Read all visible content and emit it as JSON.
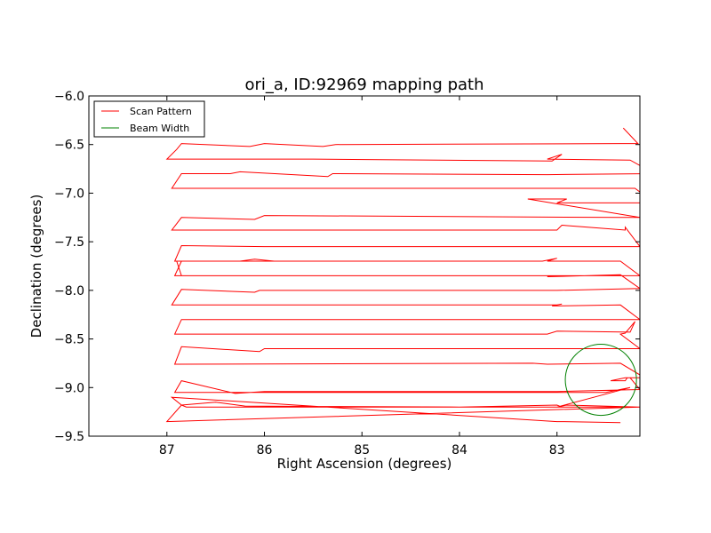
{
  "chart_data": {
    "type": "line",
    "title": "ori_a, ID:92969 mapping path",
    "xlabel": "Right Ascension (degrees)",
    "ylabel": "Declination (degrees)",
    "xlim": [
      87.8,
      82.15
    ],
    "ylim": [
      -9.5,
      -6.0
    ],
    "x_ticks": [
      {
        "value": 87,
        "label": "87"
      },
      {
        "value": 86,
        "label": "86"
      },
      {
        "value": 85,
        "label": "85"
      },
      {
        "value": 84,
        "label": "84"
      },
      {
        "value": 83,
        "label": "83"
      }
    ],
    "y_ticks": [
      {
        "value": -6.0,
        "label": "−6.0"
      },
      {
        "value": -6.5,
        "label": "−6.5"
      },
      {
        "value": -7.0,
        "label": "−7.0"
      },
      {
        "value": -7.5,
        "label": "−7.5"
      },
      {
        "value": -8.0,
        "label": "−8.0"
      },
      {
        "value": -8.5,
        "label": "−8.5"
      },
      {
        "value": -9.0,
        "label": "−9.0"
      },
      {
        "value": -9.5,
        "label": "−9.5"
      }
    ],
    "grid": false,
    "legend": {
      "position": "top-left",
      "entries": [
        {
          "label": "Scan Pattern",
          "color": "#ff0000"
        },
        {
          "label": "Beam Width",
          "color": "#008000"
        }
      ]
    },
    "series": [
      {
        "name": "Scan Pattern",
        "color": "#ff0000",
        "x": [
          82.32,
          82.17,
          82.35,
          85.27,
          85.4,
          86.0,
          86.15,
          86.85,
          86.9,
          87.0,
          85.5,
          83.05,
          82.95,
          83.1,
          82.25,
          82.0,
          83.1,
          85.3,
          85.35,
          86.25,
          86.35,
          86.85,
          86.95,
          82.2,
          82.0,
          83.0,
          82.9,
          83.3,
          82.15,
          82.35,
          86.0,
          86.1,
          86.85,
          86.95,
          83.0,
          82.95,
          82.3,
          82.3,
          82.15,
          85.4,
          86.0,
          86.85,
          86.92,
          83.15,
          83.0,
          83.1,
          82.35,
          82.15,
          86.85,
          86.9,
          86.25,
          86.1,
          85.9,
          85.3,
          86.2,
          86.85,
          86.92,
          83.0,
          83.1,
          82.35,
          82.15,
          83.0,
          86.05,
          86.1,
          86.85,
          86.95,
          83.0,
          82.95,
          83.05,
          82.35,
          82.15,
          86.85,
          86.92,
          83.1,
          83.0,
          82.25,
          82.2,
          82.3,
          82.35,
          82.15,
          85.35,
          86.0,
          86.05,
          86.85,
          86.92,
          83.25,
          83.1,
          82.35,
          82.1,
          82.28,
          82.3,
          82.45,
          82.3,
          82.25,
          82.15,
          83.0,
          86.0,
          86.3,
          86.85,
          86.92,
          82.5,
          82.25,
          83.0,
          82.9,
          82.15,
          86.8,
          86.85,
          87.0,
          82.15,
          82.95,
          83.0,
          84.0,
          86.2,
          86.5,
          86.85,
          86.95,
          83.0,
          82.95,
          82.35
        ],
        "y": [
          -6.33,
          -6.49,
          -6.49,
          -6.5,
          -6.52,
          -6.49,
          -6.52,
          -6.49,
          -6.55,
          -6.65,
          -6.65,
          -6.67,
          -6.6,
          -6.65,
          -6.66,
          -6.8,
          -6.81,
          -6.8,
          -6.83,
          -6.78,
          -6.8,
          -6.8,
          -6.95,
          -6.95,
          -7.1,
          -7.1,
          -7.06,
          -7.06,
          -7.25,
          -7.25,
          -7.23,
          -7.27,
          -7.25,
          -7.38,
          -7.38,
          -7.33,
          -7.38,
          -7.35,
          -7.55,
          -7.55,
          -7.55,
          -7.54,
          -7.7,
          -7.7,
          -7.67,
          -7.7,
          -7.7,
          -7.85,
          -7.85,
          -7.7,
          -7.7,
          -7.68,
          -7.7,
          -7.7,
          -7.7,
          -7.7,
          -7.85,
          -7.85,
          -7.86,
          -7.84,
          -7.98,
          -8.0,
          -8.0,
          -8.02,
          -7.99,
          -8.15,
          -8.15,
          -8.14,
          -8.16,
          -8.15,
          -8.3,
          -8.3,
          -8.45,
          -8.45,
          -8.42,
          -8.43,
          -8.32,
          -8.44,
          -8.45,
          -8.6,
          -8.6,
          -8.6,
          -8.63,
          -8.58,
          -8.76,
          -8.75,
          -8.76,
          -8.75,
          -8.9,
          -8.9,
          -8.93,
          -8.93,
          -8.9,
          -8.9,
          -9.02,
          -9.04,
          -9.04,
          -9.06,
          -8.93,
          -9.05,
          -9.05,
          -9.0,
          -9.2,
          -9.18,
          -9.2,
          -9.2,
          -9.18,
          -9.35,
          -9.2,
          -9.2,
          -9.18,
          -9.2,
          -9.19,
          -9.15,
          -9.18,
          -9.1,
          -9.35,
          -9.35,
          -9.36
        ]
      },
      {
        "name": "Beam Width",
        "shape": "circle",
        "color": "#008000",
        "center_x": 82.55,
        "center_y": -8.92,
        "radius_deg": 0.365
      }
    ]
  }
}
